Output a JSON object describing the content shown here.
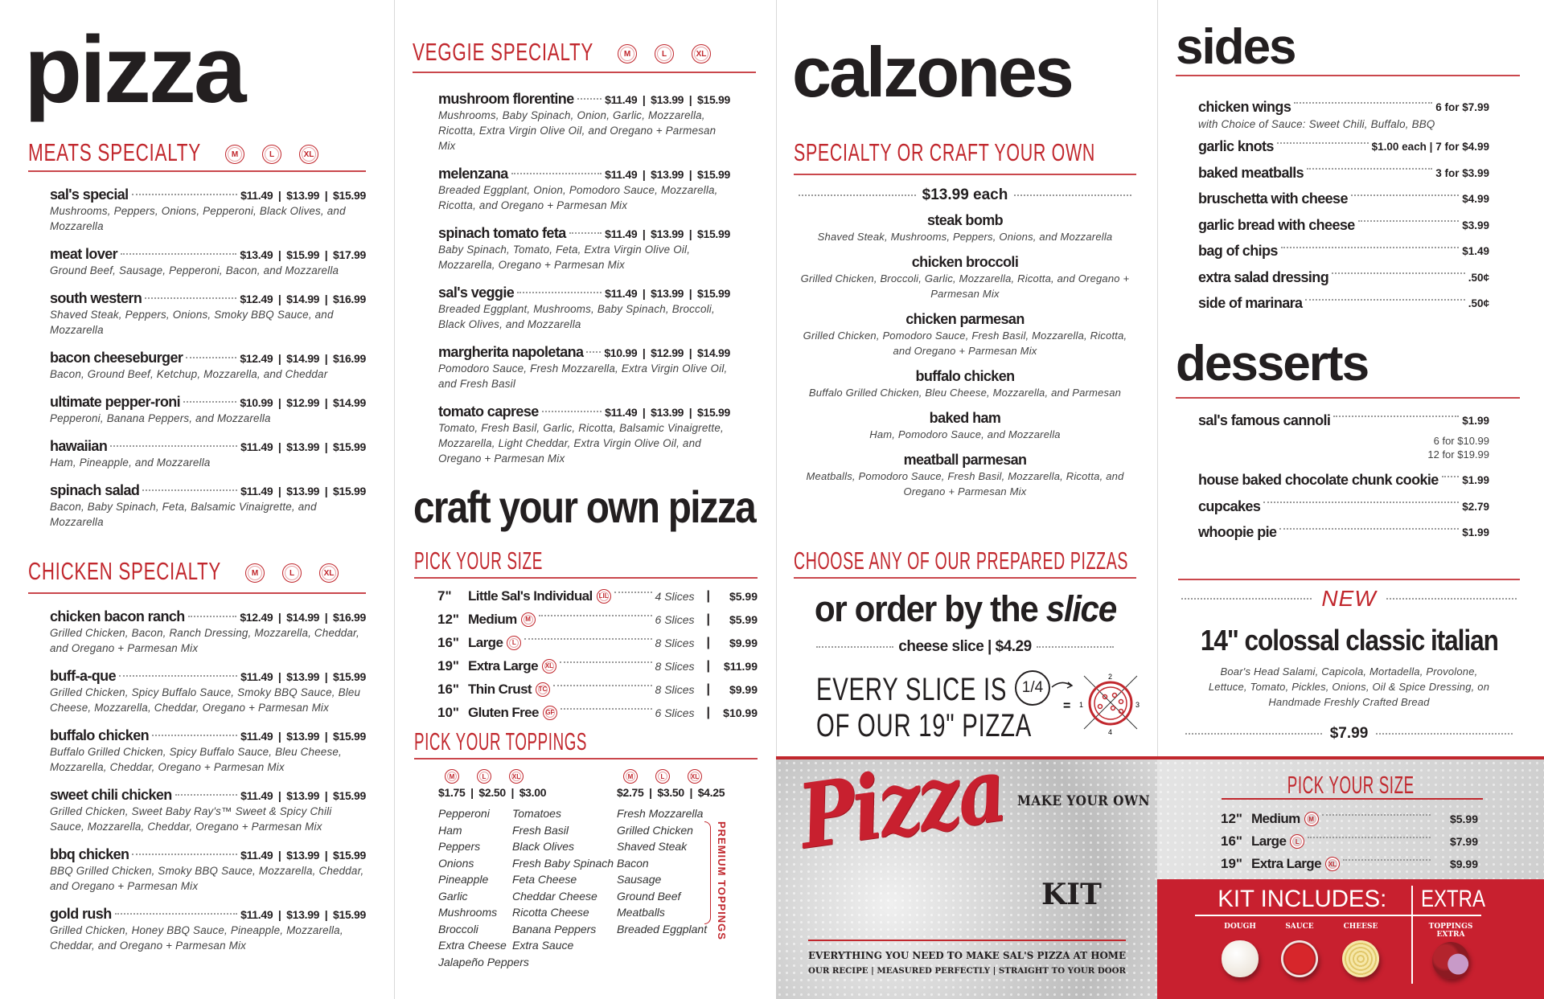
{
  "colors": {
    "accent": "#c1272d",
    "text": "#231f20",
    "kit_red": "#c8202f"
  },
  "pizza": {
    "title": "pizza",
    "meats": {
      "heading": "MEATS SPECIALTY",
      "sizes": [
        "M",
        "L",
        "XL"
      ],
      "items": [
        {
          "name": "sal's special",
          "prices": [
            "$11.49",
            "$13.99",
            "$15.99"
          ],
          "desc": "Mushrooms, Peppers, Onions, Pepperoni, Black Olives, and Mozzarella"
        },
        {
          "name": "meat lover",
          "prices": [
            "$13.49",
            "$15.99",
            "$17.99"
          ],
          "desc": "Ground Beef, Sausage, Pepperoni, Bacon, and Mozzarella"
        },
        {
          "name": "south western",
          "prices": [
            "$12.49",
            "$14.99",
            "$16.99"
          ],
          "desc": "Shaved Steak, Peppers, Onions, Smoky BBQ Sauce, and Mozzarella"
        },
        {
          "name": "bacon cheeseburger",
          "prices": [
            "$12.49",
            "$14.99",
            "$16.99"
          ],
          "desc": "Bacon, Ground Beef, Ketchup, Mozzarella, and Cheddar"
        },
        {
          "name": "ultimate pepper-roni",
          "prices": [
            "$10.99",
            "$12.99",
            "$14.99"
          ],
          "desc": "Pepperoni, Banana Peppers, and Mozzarella"
        },
        {
          "name": "hawaiian",
          "prices": [
            "$11.49",
            "$13.99",
            "$15.99"
          ],
          "desc": "Ham, Pineapple, and Mozzarella"
        },
        {
          "name": "spinach salad",
          "prices": [
            "$11.49",
            "$13.99",
            "$15.99"
          ],
          "desc": "Bacon, Baby Spinach, Feta, Balsamic Vinaigrette, and Mozzarella"
        }
      ]
    },
    "chicken": {
      "heading": "CHICKEN SPECIALTY",
      "sizes": [
        "M",
        "L",
        "XL"
      ],
      "items": [
        {
          "name": "chicken bacon ranch",
          "prices": [
            "$12.49",
            "$14.99",
            "$16.99"
          ],
          "desc": "Grilled Chicken, Bacon, Ranch Dressing, Mozzarella, Cheddar, and Oregano + Parmesan Mix"
        },
        {
          "name": "buff-a-que",
          "prices": [
            "$11.49",
            "$13.99",
            "$15.99"
          ],
          "desc": "Grilled Chicken, Spicy Buffalo Sauce, Smoky BBQ Sauce, Bleu Cheese, Mozzarella, Cheddar, Oregano + Parmesan Mix"
        },
        {
          "name": "buffalo chicken",
          "prices": [
            "$11.49",
            "$13.99",
            "$15.99"
          ],
          "desc": "Buffalo Grilled Chicken, Spicy Buffalo Sauce, Bleu Cheese, Mozzarella, Cheddar, Oregano + Parmesan Mix"
        },
        {
          "name": "sweet chili chicken",
          "prices": [
            "$11.49",
            "$13.99",
            "$15.99"
          ],
          "desc": "Grilled Chicken, Sweet Baby Ray's™ Sweet & Spicy Chili Sauce, Mozzarella, Cheddar, Oregano + Parmesan Mix"
        },
        {
          "name": "bbq chicken",
          "prices": [
            "$11.49",
            "$13.99",
            "$15.99"
          ],
          "desc": "BBQ Grilled Chicken, Smoky BBQ Sauce, Mozzarella, Cheddar, and Oregano + Parmesan Mix"
        },
        {
          "name": "gold rush",
          "prices": [
            "$11.49",
            "$13.99",
            "$15.99"
          ],
          "desc": "Grilled Chicken, Honey BBQ Sauce, Pineapple, Mozzarella, Cheddar, and Oregano + Parmesan Mix"
        }
      ]
    }
  },
  "veggie": {
    "heading": "VEGGIE SPECIALTY",
    "sizes": [
      "M",
      "L",
      "XL"
    ],
    "items": [
      {
        "name": "mushroom florentine",
        "prices": [
          "$11.49",
          "$13.99",
          "$15.99"
        ],
        "desc": "Mushrooms, Baby Spinach, Onion, Garlic, Mozzarella, Ricotta, Extra Virgin Olive Oil, and Oregano + Parmesan Mix"
      },
      {
        "name": "melenzana",
        "prices": [
          "$11.49",
          "$13.99",
          "$15.99"
        ],
        "desc": "Breaded Eggplant, Onion, Pomodoro Sauce, Mozzarella, Ricotta, and Oregano + Parmesan Mix"
      },
      {
        "name": "spinach tomato feta",
        "prices": [
          "$11.49",
          "$13.99",
          "$15.99"
        ],
        "desc": "Baby Spinach, Tomato, Feta, Extra Virgin Olive Oil, Mozzarella, Oregano + Parmesan Mix"
      },
      {
        "name": "sal's veggie",
        "prices": [
          "$11.49",
          "$13.99",
          "$15.99"
        ],
        "desc": "Breaded Eggplant, Mushrooms, Baby Spinach, Broccoli, Black Olives, and Mozzarella"
      },
      {
        "name": "margherita napoletana",
        "prices": [
          "$10.99",
          "$12.99",
          "$14.99"
        ],
        "desc": "Pomodoro Sauce, Fresh Mozzarella, Extra Virgin Olive Oil, and Fresh Basil"
      },
      {
        "name": "tomato caprese",
        "prices": [
          "$11.49",
          "$13.99",
          "$15.99"
        ],
        "desc": "Tomato, Fresh Basil, Garlic, Ricotta, Balsamic Vinaigrette, Mozzarella, Light Cheddar, Extra Virgin Olive Oil, and Oregano + Parmesan Mix"
      }
    ]
  },
  "craft": {
    "title": "craft your own pizza",
    "size_heading": "PICK YOUR SIZE",
    "sizes": [
      {
        "inch": "7\"",
        "name": "Little Sal's Individual",
        "badge": "LIL",
        "slices": "4 Slices",
        "price": "$5.99"
      },
      {
        "inch": "12\"",
        "name": "Medium",
        "badge": "M",
        "slices": "6 Slices",
        "price": "$5.99"
      },
      {
        "inch": "16\"",
        "name": "Large",
        "badge": "L",
        "slices": "8 Slices",
        "price": "$9.99"
      },
      {
        "inch": "19\"",
        "name": "Extra Large",
        "badge": "XL",
        "slices": "8 Slices",
        "price": "$11.99"
      },
      {
        "inch": "16\"",
        "name": "Thin Crust",
        "badge": "TC",
        "slices": "8 Slices",
        "price": "$9.99"
      },
      {
        "inch": "10\"",
        "name": "Gluten Free",
        "badge": "GF",
        "slices": "6 Slices",
        "price": "$10.99"
      }
    ],
    "toppings_heading": "PICK YOUR TOPPINGS",
    "regular": {
      "sizes": [
        "M",
        "L",
        "XL"
      ],
      "prices": [
        "$1.75",
        "$2.50",
        "$3.00"
      ],
      "col1": [
        "Pepperoni",
        "Ham",
        "Peppers",
        "Onions",
        "Pineapple",
        "Garlic",
        "Mushrooms",
        "Broccoli",
        "Extra Cheese",
        "Jalapeño Peppers"
      ],
      "col2": [
        "Tomatoes",
        "Fresh Basil",
        "Black Olives",
        "Fresh Baby Spinach",
        "Feta Cheese",
        "Cheddar Cheese",
        "Ricotta Cheese",
        "Banana Peppers",
        "Extra Sauce"
      ]
    },
    "premium": {
      "sizes": [
        "M",
        "L",
        "XL"
      ],
      "prices": [
        "$2.75",
        "$3.50",
        "$4.25"
      ],
      "label": "PREMIUM TOPPINGS",
      "items": [
        "Fresh Mozzarella",
        "Grilled Chicken",
        "Shaved Steak",
        "Bacon",
        "Sausage",
        "Ground Beef",
        "Meatballs",
        "Breaded Eggplant"
      ]
    }
  },
  "calzones": {
    "title": "calzones",
    "heading": "SPECIALTY OR CRAFT YOUR OWN",
    "price": "$13.99 each",
    "items": [
      {
        "name": "steak bomb",
        "desc": "Shaved Steak, Mushrooms, Peppers, Onions, and Mozzarella"
      },
      {
        "name": "chicken broccoli",
        "desc": "Grilled Chicken, Broccoli, Garlic, Mozzarella, Ricotta, and Oregano + Parmesan Mix"
      },
      {
        "name": "chicken parmesan",
        "desc": "Grilled Chicken, Pomodoro Sauce, Fresh Basil, Mozzarella, Ricotta, and Oregano + Parmesan Mix"
      },
      {
        "name": "buffalo chicken",
        "desc": "Buffalo Grilled Chicken, Bleu Cheese, Mozzarella, and Parmesan"
      },
      {
        "name": "baked ham",
        "desc": "Ham, Pomodoro Sauce, and Mozzarella"
      },
      {
        "name": "meatball parmesan",
        "desc": "Meatballs, Pomodoro Sauce, Fresh Basil, Mozzarella, Ricotta, and Oregano + Parmesan Mix"
      }
    ]
  },
  "slice": {
    "heading": "CHOOSE ANY OF OUR PREPARED PIZZAS",
    "title_a": "or order by the ",
    "title_b": "slice",
    "cheese": "cheese slice | $4.29",
    "every_1": "EVERY SLICE IS",
    "every_2": "OF OUR 19\" PIZZA",
    "fraction": "1/4",
    "icon": "pizza-quarters-icon",
    "quarters": [
      "1",
      "2",
      "3",
      "4"
    ]
  },
  "sides": {
    "title": "sides",
    "items": [
      {
        "name": "chicken wings",
        "price": "6 for $7.99",
        "desc": "with Choice of Sauce: Sweet Chili, Buffalo, BBQ"
      },
      {
        "name": "garlic knots",
        "price": "$1.00 each  |  7 for $4.99"
      },
      {
        "name": "baked meatballs",
        "price": "3 for $3.99"
      },
      {
        "name": "bruschetta with cheese",
        "price": "$4.99"
      },
      {
        "name": "garlic bread with cheese",
        "price": "$3.99"
      },
      {
        "name": "bag of chips",
        "price": "$1.49"
      },
      {
        "name": "extra salad dressing",
        "price": ".50¢"
      },
      {
        "name": "side of marinara",
        "price": ".50¢"
      }
    ]
  },
  "desserts": {
    "title": "desserts",
    "items": [
      {
        "name": "sal's famous cannoli",
        "price": "$1.99",
        "extra": [
          "6 for $10.99",
          "12 for $19.99"
        ]
      },
      {
        "name": "house baked chocolate chunk cookie",
        "price": "$1.99"
      },
      {
        "name": "cupcakes",
        "price": "$2.79"
      },
      {
        "name": "whoopie pie",
        "price": "$1.99"
      }
    ]
  },
  "new_item": {
    "badge": "NEW",
    "name": "14\" colossal classic italian",
    "desc": "Boar's Head Salami, Capicola, Mortadella, Provolone, Lettuce, Tomato, Pickles, Onions, Oil & Spice Dressing, on Handmade Freshly Crafted Bread",
    "price": "$7.99"
  },
  "kit": {
    "make": "MAKE YOUR OWN",
    "script": "Pizza",
    "kit": "KIT",
    "tag1": "EVERYTHING YOU NEED TO MAKE SAL'S PIZZA AT HOME",
    "tag2": "OUR RECIPE | MEASURED PERFECTLY | STRAIGHT TO YOUR DOOR",
    "size_heading": "PICK YOUR SIZE",
    "sizes": [
      {
        "inch": "12\"",
        "name": "Medium",
        "badge": "M",
        "price": "$5.99"
      },
      {
        "inch": "16\"",
        "name": "Large",
        "badge": "L",
        "price": "$7.99"
      },
      {
        "inch": "19\"",
        "name": "Extra Large",
        "badge": "XL",
        "price": "$9.99"
      }
    ],
    "includes": "KIT INCLUDES:",
    "extra": "EXTRA",
    "ingredients": [
      "DOUGH",
      "SAUCE",
      "CHEESE"
    ],
    "extra_item": "TOPPINGS EXTRA"
  }
}
